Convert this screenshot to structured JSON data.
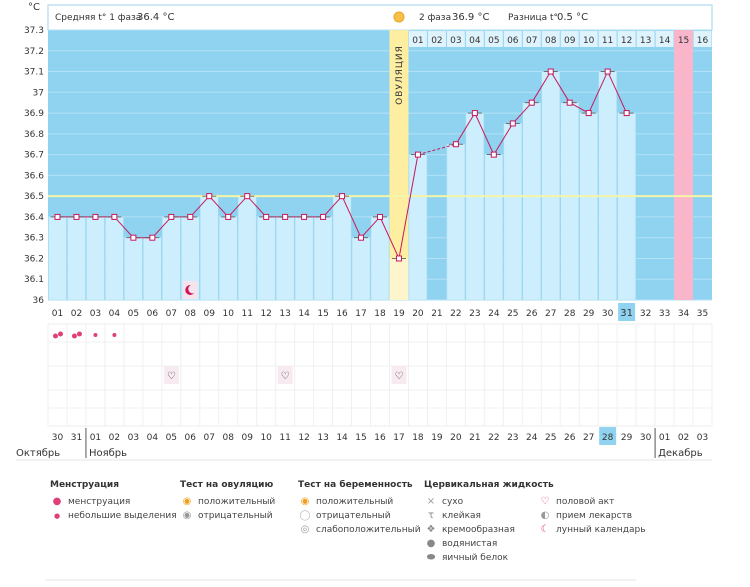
{
  "header": {
    "unit": "°C",
    "phase1_label": "Средняя t° 1 фаза",
    "phase1_value": "36.4 °C",
    "phase2_label": "2 фаза",
    "phase2_value": "36.9 °C",
    "diff_label": "Разница t°",
    "diff_value": "0.5 °C"
  },
  "ovulation_label": "ОВУЛЯЦИЯ",
  "months": {
    "oct": "Октябрь",
    "nov": "Ноябрь",
    "dec": "Декабрь"
  },
  "colors": {
    "bg_blue": "#8fd3f0",
    "bar": "#cdeefc",
    "line": "#c8185c",
    "ovulation": "#fdeea2",
    "pink_day": "#f9b5c9",
    "coverline": "#f5f5a8",
    "red_date": "#d0145a",
    "heart": "#e0407a"
  },
  "chart_data": {
    "type": "line",
    "y_ticks": [
      "37.3",
      "37.2",
      "37.1",
      "37",
      "36.9",
      "36.8",
      "36.7",
      "36.6",
      "36.5",
      "36.4",
      "36.3",
      "36.2",
      "36.1",
      "36"
    ],
    "ylim": [
      36,
      37.3
    ],
    "coverline": 36.5,
    "cycle_days": [
      "01",
      "02",
      "03",
      "04",
      "05",
      "06",
      "07",
      "08",
      "09",
      "10",
      "11",
      "12",
      "13",
      "14",
      "15",
      "16",
      "17",
      "18",
      "19",
      "20",
      "21",
      "22",
      "23",
      "24",
      "25",
      "26",
      "27",
      "28",
      "29",
      "30",
      "31",
      "32",
      "33",
      "34",
      "35"
    ],
    "temperatures": [
      36.4,
      36.4,
      36.4,
      36.4,
      36.3,
      36.3,
      36.4,
      36.4,
      36.5,
      36.4,
      36.5,
      36.4,
      36.4,
      36.4,
      36.4,
      36.5,
      36.3,
      36.4,
      36.2,
      36.7,
      null,
      36.75,
      36.9,
      36.7,
      36.85,
      36.95,
      37.1,
      36.95,
      36.9,
      37.1,
      36.9,
      null,
      null,
      null,
      null
    ],
    "ovulation_day": 19,
    "phase2_days": [
      "01",
      "02",
      "03",
      "04",
      "05",
      "06",
      "07",
      "08",
      "09",
      "10",
      "11",
      "12",
      "13",
      "14",
      "15",
      "16"
    ],
    "dates": [
      "30",
      "31",
      "01",
      "02",
      "03",
      "04",
      "05",
      "06",
      "07",
      "08",
      "09",
      "10",
      "11",
      "12",
      "13",
      "14",
      "15",
      "16",
      "17",
      "18",
      "19",
      "20",
      "21",
      "22",
      "23",
      "24",
      "25",
      "26",
      "27",
      "28",
      "29",
      "30",
      "01",
      "02",
      "03"
    ],
    "red_date_indices": [
      3,
      4,
      10,
      11,
      15,
      16,
      22,
      23,
      30,
      31
    ],
    "menstruation_days": [
      1,
      2,
      3,
      4
    ],
    "intercourse_days": [
      7,
      13,
      19
    ],
    "moon_day": 8,
    "highlight_cycle_day": 31,
    "phase2_pink_day": 15
  },
  "legend": {
    "menstruation": {
      "title": "Менструация",
      "items": [
        "менструация",
        "небольшие выделения"
      ]
    },
    "ovulation_test": {
      "title": "Тест на овуляцию",
      "items": [
        "положительный",
        "отрицательный"
      ]
    },
    "pregnancy_test": {
      "title": "Тест на беременность",
      "items": [
        "положительный",
        "отрицательный",
        "слабоположительный"
      ]
    },
    "cervical": {
      "title": "Цервикальная жидкость",
      "items": [
        "сухо",
        "клейкая",
        "кремообразная",
        "водянистая",
        "яичный белок"
      ]
    },
    "other": {
      "items": [
        "половой акт",
        "прием лекарств",
        "лунный календарь"
      ]
    }
  }
}
